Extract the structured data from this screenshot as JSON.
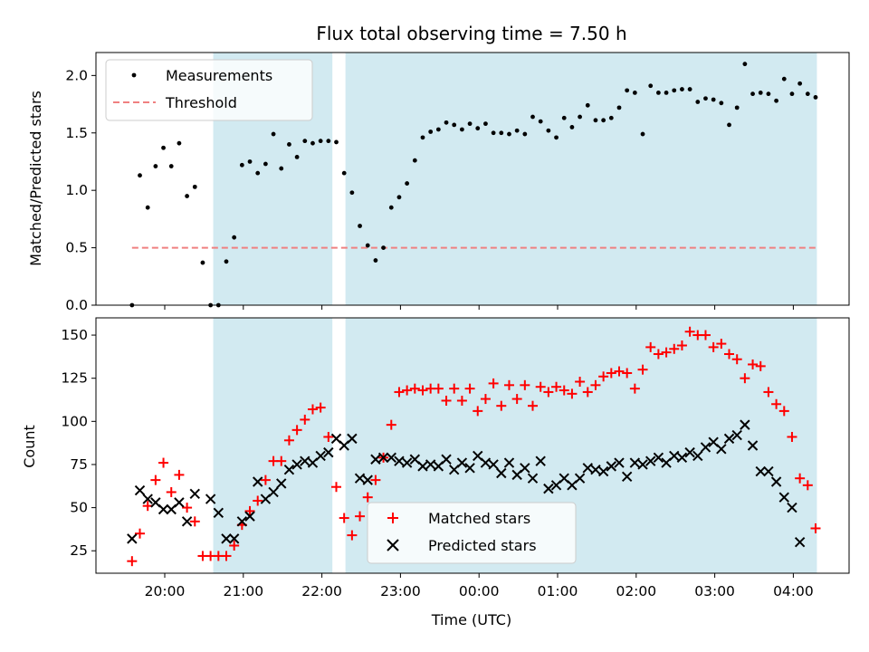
{
  "chart_data": [
    {
      "type": "scatter",
      "title": "Flux total observing time = 7.50 h",
      "xlabel": "",
      "ylabel": "Matched/Predicted stars",
      "ylim": [
        0,
        2.2
      ],
      "yticks": [
        "0.0",
        "0.5",
        "1.0",
        "1.5",
        "2.0"
      ],
      "threshold": 0.5,
      "legend": [
        "Measurements",
        "Threshold"
      ],
      "legend_position": "upper left",
      "shaded_intervals": [
        [
          "20:37",
          "22:08"
        ],
        [
          "22:18",
          "04:18"
        ]
      ],
      "colors": {
        "measurements": "#000000",
        "threshold": "#f08080",
        "shade": "#add8e6"
      },
      "series": [
        {
          "name": "Measurements",
          "x": [
            "19:35",
            "19:41",
            "19:47",
            "19:53",
            "19:59",
            "20:05",
            "20:11",
            "20:17",
            "20:23",
            "20:29",
            "20:35",
            "20:41",
            "20:47",
            "20:53",
            "20:59",
            "21:05",
            "21:11",
            "21:17",
            "21:23",
            "21:29",
            "21:35",
            "21:41",
            "21:47",
            "21:53",
            "21:59",
            "22:05",
            "22:11",
            "22:17",
            "22:23",
            "22:29",
            "22:35",
            "22:41",
            "22:47",
            "22:53",
            "22:59",
            "23:05",
            "23:11",
            "23:17",
            "23:23",
            "23:29",
            "23:35",
            "23:41",
            "23:47",
            "23:53",
            "23:59",
            "00:05",
            "00:11",
            "00:17",
            "00:23",
            "00:29",
            "00:35",
            "00:41",
            "00:47",
            "00:53",
            "00:59",
            "01:05",
            "01:11",
            "01:17",
            "01:23",
            "01:29",
            "01:35",
            "01:41",
            "01:47",
            "01:53",
            "01:59",
            "02:05",
            "02:11",
            "02:17",
            "02:23",
            "02:29",
            "02:35",
            "02:41",
            "02:47",
            "02:53",
            "02:59",
            "03:05",
            "03:11",
            "03:17",
            "03:23",
            "03:29",
            "03:35",
            "03:41",
            "03:47",
            "03:53",
            "03:59",
            "04:05",
            "04:11",
            "04:17"
          ],
          "values": [
            0.0,
            1.13,
            0.85,
            1.21,
            1.37,
            1.21,
            1.41,
            0.95,
            1.03,
            0.37,
            0.0,
            0.0,
            0.38,
            0.59,
            1.22,
            1.25,
            1.15,
            1.23,
            1.49,
            1.19,
            1.4,
            1.29,
            1.43,
            1.41,
            1.43,
            1.43,
            1.42,
            1.15,
            0.98,
            0.69,
            0.52,
            0.39,
            0.5,
            0.85,
            0.94,
            1.06,
            1.26,
            1.46,
            1.51,
            1.53,
            1.59,
            1.57,
            1.53,
            1.58,
            1.54,
            1.58,
            1.5,
            1.5,
            1.49,
            1.52,
            1.49,
            1.64,
            1.6,
            1.52,
            1.46,
            1.63,
            1.55,
            1.64,
            1.74,
            1.61,
            1.61,
            1.63,
            1.72,
            1.87,
            1.85,
            1.49,
            1.91,
            1.85,
            1.85,
            1.87,
            1.88,
            1.88,
            1.77,
            1.8,
            1.79,
            1.76,
            1.57,
            1.72,
            2.1,
            1.84,
            1.85,
            1.84,
            1.78,
            1.97,
            1.84,
            1.93,
            1.84,
            1.81
          ]
        }
      ]
    },
    {
      "type": "scatter",
      "title": "",
      "xlabel": "Time (UTC)",
      "ylabel": "Count",
      "ylim": [
        12,
        160
      ],
      "yticks": [
        "25",
        "50",
        "75",
        "100",
        "125",
        "150"
      ],
      "xticks": [
        "20:00",
        "21:00",
        "22:00",
        "23:00",
        "00:00",
        "01:00",
        "02:00",
        "03:00",
        "04:00"
      ],
      "legend": [
        "Matched stars",
        "Predicted stars"
      ],
      "legend_position": "lower center",
      "shaded_intervals": [
        [
          "20:37",
          "22:08"
        ],
        [
          "22:18",
          "04:18"
        ]
      ],
      "colors": {
        "matched": "#ff0000",
        "predicted": "#000000",
        "shade": "#add8e6"
      },
      "series": [
        {
          "name": "Matched stars",
          "x": [
            "19:35",
            "19:41",
            "19:47",
            "19:53",
            "19:59",
            "20:05",
            "20:11",
            "20:17",
            "20:23",
            "20:29",
            "20:35",
            "20:41",
            "20:47",
            "20:53",
            "20:59",
            "21:05",
            "21:11",
            "21:17",
            "21:23",
            "21:29",
            "21:35",
            "21:41",
            "21:47",
            "21:53",
            "21:59",
            "22:05",
            "22:11",
            "22:17",
            "22:23",
            "22:29",
            "22:35",
            "22:41",
            "22:47",
            "22:53",
            "22:59",
            "23:05",
            "23:11",
            "23:17",
            "23:23",
            "23:29",
            "23:35",
            "23:41",
            "23:47",
            "23:53",
            "23:59",
            "00:05",
            "00:11",
            "00:17",
            "00:23",
            "00:29",
            "00:35",
            "00:41",
            "00:47",
            "00:53",
            "00:59",
            "01:05",
            "01:11",
            "01:17",
            "01:23",
            "01:29",
            "01:35",
            "01:41",
            "01:47",
            "01:53",
            "01:59",
            "02:05",
            "02:11",
            "02:17",
            "02:23",
            "02:29",
            "02:35",
            "02:41",
            "02:47",
            "02:53",
            "02:59",
            "03:05",
            "03:11",
            "03:17",
            "03:23",
            "03:29",
            "03:35",
            "03:41",
            "03:47",
            "03:53",
            "03:59",
            "04:05",
            "04:11",
            "04:17"
          ],
          "values": [
            19,
            35,
            51,
            66,
            76,
            59,
            69,
            50,
            42,
            22,
            22,
            22,
            22,
            28,
            40,
            48,
            54,
            66,
            77,
            77,
            89,
            95,
            101,
            107,
            108,
            91,
            62,
            44,
            34,
            45,
            56,
            66,
            79,
            98,
            117,
            118,
            119,
            118,
            119,
            119,
            112,
            119,
            112,
            119,
            106,
            113,
            122,
            109,
            121,
            113,
            121,
            109,
            120,
            117,
            120,
            118,
            116,
            123,
            117,
            121,
            126,
            128,
            129,
            128,
            119,
            130,
            143,
            139,
            140,
            142,
            144,
            152,
            150,
            150,
            143,
            145,
            139,
            136,
            125,
            133,
            132,
            117,
            110,
            106,
            91,
            67,
            63,
            38
          ]
        },
        {
          "name": "Predicted stars",
          "x": [
            "19:35",
            "19:41",
            "19:47",
            "19:53",
            "19:59",
            "20:05",
            "20:11",
            "20:17",
            "20:23",
            "20:29",
            "20:35",
            "20:41",
            "20:47",
            "20:53",
            "20:59",
            "21:05",
            "21:11",
            "21:17",
            "21:23",
            "21:29",
            "21:35",
            "21:41",
            "21:47",
            "21:53",
            "21:59",
            "22:05",
            "22:11",
            "22:17",
            "22:23",
            "22:29",
            "22:35",
            "22:41",
            "22:47",
            "22:53",
            "22:59",
            "23:05",
            "23:11",
            "23:17",
            "23:23",
            "23:29",
            "23:35",
            "23:41",
            "23:47",
            "23:53",
            "23:59",
            "00:05",
            "00:11",
            "00:17",
            "00:23",
            "00:29",
            "00:35",
            "00:41",
            "00:47",
            "00:53",
            "00:59",
            "01:05",
            "01:11",
            "01:17",
            "01:23",
            "01:29",
            "01:35",
            "01:41",
            "01:47",
            "01:53",
            "01:59",
            "02:05",
            "02:11",
            "02:17",
            "02:23",
            "02:29",
            "02:35",
            "02:41",
            "02:47",
            "02:53",
            "02:59",
            "03:05",
            "03:11",
            "03:17",
            "03:23",
            "03:29",
            "03:35",
            "03:41",
            "03:47",
            "03:53",
            "03:59",
            "04:05",
            "04:11",
            "04:17"
          ],
          "values": [
            32,
            60,
            55,
            53,
            49,
            49,
            53,
            42,
            58,
            null,
            55,
            47,
            32,
            32,
            42,
            45,
            65,
            55,
            59,
            64,
            72,
            75,
            77,
            76,
            80,
            82,
            90,
            86,
            90,
            67,
            66,
            78,
            79,
            79,
            77,
            76,
            78,
            74,
            75,
            74,
            78,
            72,
            76,
            73,
            80,
            76,
            75,
            70,
            76,
            69,
            73,
            67,
            77,
            61,
            63,
            67,
            63,
            67,
            73,
            72,
            71,
            74,
            76,
            68,
            76,
            75,
            77,
            79,
            76,
            80,
            79,
            82,
            80,
            85,
            88,
            84,
            90,
            92,
            98,
            86,
            71,
            71,
            65,
            56,
            50,
            30,
            null,
            null
          ]
        }
      ]
    }
  ]
}
